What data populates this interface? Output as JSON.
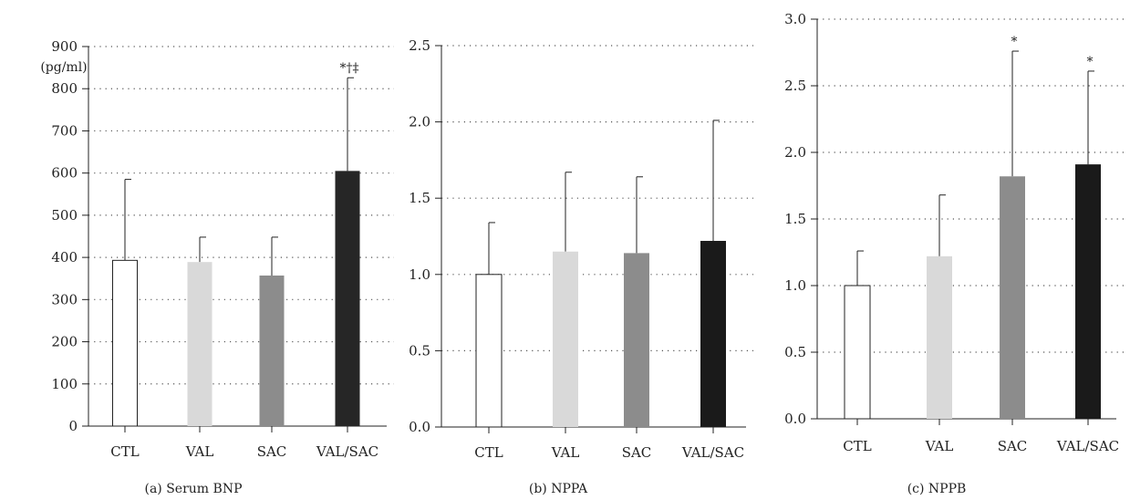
{
  "figure": {
    "unit_label": "(pg/ml)"
  },
  "chart_data": [
    {
      "type": "bar",
      "caption": "(a) Serum BNP",
      "categories": [
        "CTL",
        "VAL",
        "SAC",
        "VAL/SAC"
      ],
      "values": [
        393,
        389,
        357,
        605
      ],
      "error_upper": [
        585,
        448,
        448,
        826
      ],
      "significance": [
        "",
        "",
        "",
        "*†‡"
      ],
      "ylim": [
        0,
        900
      ],
      "yticks": [
        0,
        100,
        200,
        300,
        400,
        500,
        600,
        700,
        800,
        900
      ],
      "ytick_labels": [
        "0",
        "100",
        "200",
        "300",
        "400",
        "500",
        "600",
        "700",
        "800",
        "900"
      ],
      "ylabel": "(pg/ml)",
      "grid": "dotted horizontal",
      "colors": [
        "#ffffff",
        "#d9d9d9",
        "#8c8c8c",
        "#262626"
      ]
    },
    {
      "type": "bar",
      "caption": "(b) NPPA",
      "categories": [
        "CTL",
        "VAL",
        "SAC",
        "VAL/SAC"
      ],
      "values": [
        1.0,
        1.15,
        1.14,
        1.22
      ],
      "error_upper": [
        1.34,
        1.67,
        1.64,
        2.01
      ],
      "significance": [
        "",
        "",
        "",
        ""
      ],
      "ylim": [
        0,
        2.5
      ],
      "yticks": [
        0,
        0.5,
        1.0,
        1.5,
        2.0,
        2.5
      ],
      "ytick_labels": [
        "0.0",
        "0.5",
        "1.0",
        "1.5",
        "2.0",
        "2.5"
      ],
      "grid": "dotted horizontal",
      "colors": [
        "#ffffff",
        "#d9d9d9",
        "#8c8c8c",
        "#1a1a1a"
      ]
    },
    {
      "type": "bar",
      "caption": "(c) NPPB",
      "categories": [
        "CTL",
        "VAL",
        "SAC",
        "VAL/SAC"
      ],
      "values": [
        1.0,
        1.22,
        1.82,
        1.91
      ],
      "error_upper": [
        1.26,
        1.68,
        2.76,
        2.61
      ],
      "significance": [
        "",
        "",
        "*",
        "*"
      ],
      "ylim": [
        0,
        3.0
      ],
      "yticks": [
        0,
        0.5,
        1.0,
        1.5,
        2.0,
        2.5,
        3.0
      ],
      "ytick_labels": [
        "0.0",
        "0.5",
        "1.0",
        "1.5",
        "2.0",
        "2.5",
        "3.0"
      ],
      "grid": "dotted horizontal",
      "colors": [
        "#ffffff",
        "#d9d9d9",
        "#8c8c8c",
        "#1a1a1a"
      ]
    }
  ]
}
